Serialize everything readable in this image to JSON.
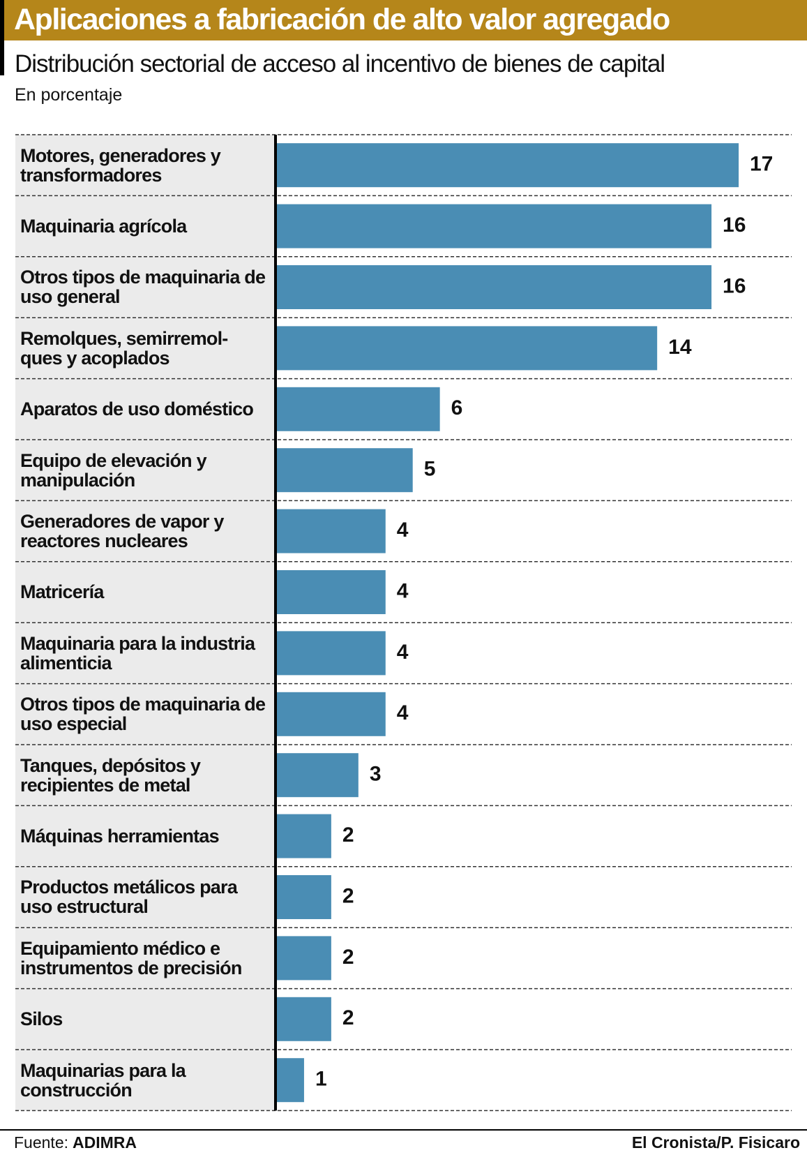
{
  "chart_data": {
    "type": "bar",
    "orientation": "horizontal",
    "title": "Aplicaciones a fabricación de alto valor agregado",
    "subtitle": "Distribución sectorial de acceso al incentivo de bienes de capital",
    "unit": "En porcentaje",
    "categories": [
      "Motores, generadores y transformadores",
      "Maquinaria agrícola",
      "Otros tipos de maquinaria de uso general",
      "Remolques, semirremol-ques y acoplados",
      "Aparatos de uso doméstico",
      "Equipo de elevación y manipulación",
      "Generadores de vapor y reactores nucleares",
      "Matricería",
      "Maquinaria para la industria alimenticia",
      "Otros tipos de maquinaria de uso especial",
      "Tanques, depósitos y recipientes de metal",
      "Máquinas herramientas",
      "Productos metálicos para uso estructural",
      "Equipamiento médico e instrumentos de precisión",
      "Silos",
      "Maquinarias  para la construcción"
    ],
    "values": [
      17,
      16,
      16,
      14,
      6,
      5,
      4,
      4,
      4,
      4,
      3,
      2,
      2,
      2,
      2,
      1
    ],
    "color": "#4a8db4",
    "xlim": [
      0,
      17
    ],
    "source_label": "Fuente:",
    "source": "ADIMRA",
    "credit": "El Cronista/P. Fisicaro"
  }
}
